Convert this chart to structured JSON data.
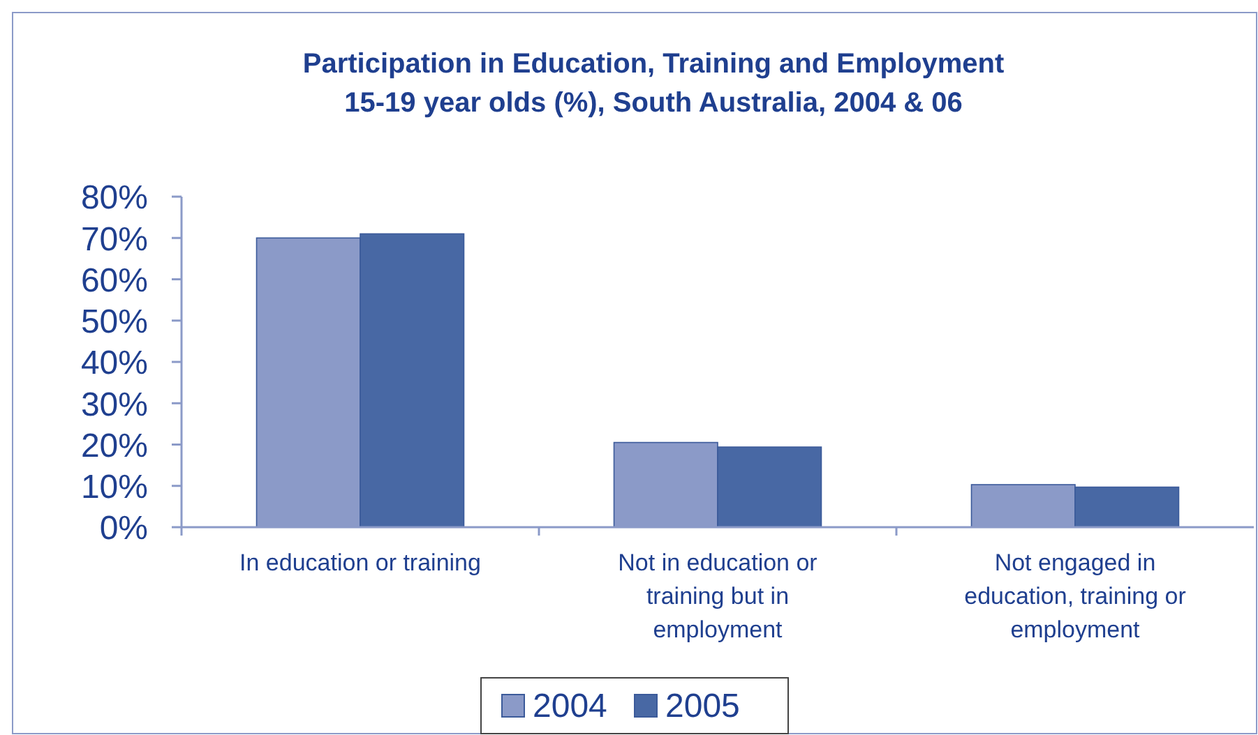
{
  "chart_data": {
    "type": "bar",
    "title": "Participation in Education, Training and Employment\n15-19 year olds (%), South Australia, 2004 & 06",
    "categories": [
      "In education or training",
      "Not in education or training but in employment",
      "Not engaged in education, training or employment"
    ],
    "series": [
      {
        "name": "2004",
        "color": "#8b9ac8",
        "values": [
          70,
          20.5,
          10.3
        ]
      },
      {
        "name": "2005",
        "color": "#4868a4",
        "values": [
          71,
          19.4,
          9.7
        ]
      }
    ],
    "ylim": [
      0,
      80
    ],
    "yticks": [
      {
        "value": 0,
        "label": "0%"
      },
      {
        "value": 10,
        "label": "10%"
      },
      {
        "value": 20,
        "label": "20%"
      },
      {
        "value": 30,
        "label": "30%"
      },
      {
        "value": 40,
        "label": "40%"
      },
      {
        "value": 50,
        "label": "50%"
      },
      {
        "value": 60,
        "label": "60%"
      },
      {
        "value": 70,
        "label": "70%"
      },
      {
        "value": 80,
        "label": "80%"
      }
    ],
    "grid": false,
    "legend": "bottom"
  }
}
